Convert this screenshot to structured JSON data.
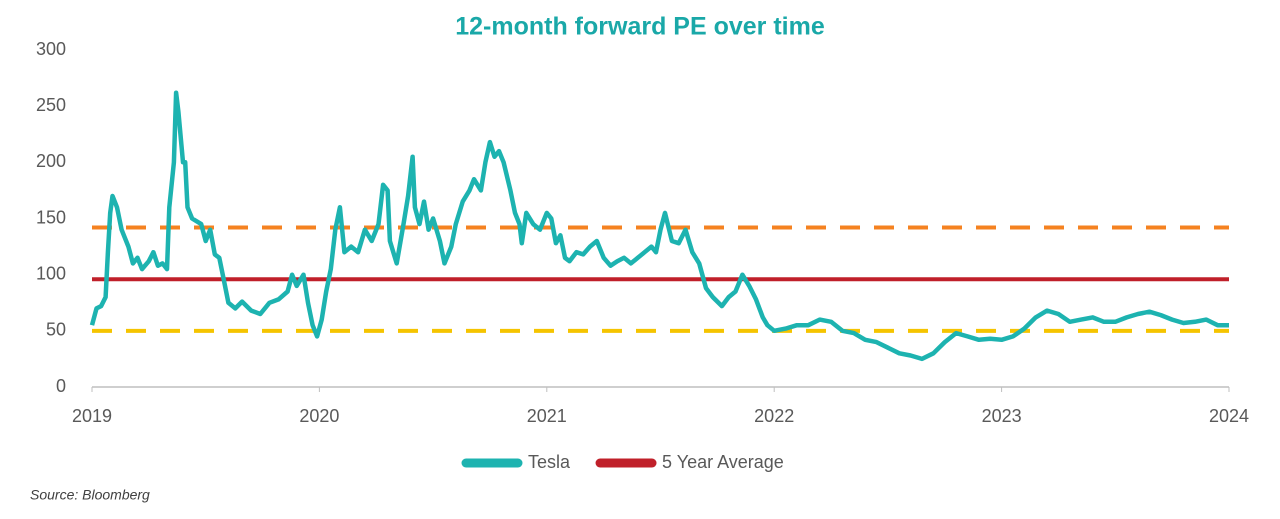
{
  "chart_data": {
    "type": "line",
    "title": "12-month forward PE over time",
    "source": "Source: Bloomberg",
    "xlim": [
      2019,
      2024
    ],
    "xticks": [
      2019,
      2020,
      2021,
      2022,
      2023,
      2024
    ],
    "ylim": [
      0,
      300
    ],
    "yticks": [
      0,
      50,
      100,
      150,
      200,
      250,
      300
    ],
    "grid": false,
    "legend": "bottom",
    "reference_lines": [
      {
        "value": 142,
        "color": "#f58220"
      },
      {
        "value": 50,
        "color": "#f5c400"
      }
    ],
    "series": [
      {
        "name": "Tesla",
        "color": "#1db3b0",
        "x": [
          2019.0,
          2019.02,
          2019.04,
          2019.06,
          2019.07,
          2019.08,
          2019.09,
          2019.11,
          2019.13,
          2019.16,
          2019.18,
          2019.2,
          2019.22,
          2019.25,
          2019.27,
          2019.29,
          2019.31,
          2019.33,
          2019.34,
          2019.36,
          2019.37,
          2019.38,
          2019.4,
          2019.41,
          2019.42,
          2019.44,
          2019.48,
          2019.5,
          2019.52,
          2019.54,
          2019.56,
          2019.58,
          2019.6,
          2019.63,
          2019.66,
          2019.7,
          2019.74,
          2019.78,
          2019.82,
          2019.86,
          2019.88,
          2019.9,
          2019.93,
          2019.95,
          2019.97,
          2019.99,
          2020.01,
          2020.03,
          2020.05,
          2020.07,
          2020.09,
          2020.11,
          2020.14,
          2020.17,
          2020.2,
          2020.23,
          2020.26,
          2020.28,
          2020.3,
          2020.31,
          2020.34,
          2020.37,
          2020.39,
          2020.41,
          2020.42,
          2020.44,
          2020.46,
          2020.48,
          2020.5,
          2020.53,
          2020.55,
          2020.58,
          2020.6,
          2020.63,
          2020.66,
          2020.68,
          2020.71,
          2020.73,
          2020.75,
          2020.77,
          2020.79,
          2020.81,
          2020.84,
          2020.86,
          2020.88,
          2020.89,
          2020.91,
          2020.94,
          2020.97,
          2021.0,
          2021.02,
          2021.04,
          2021.06,
          2021.08,
          2021.1,
          2021.13,
          2021.16,
          2021.19,
          2021.22,
          2021.25,
          2021.28,
          2021.31,
          2021.34,
          2021.37,
          2021.4,
          2021.43,
          2021.46,
          2021.48,
          2021.5,
          2021.52,
          2021.55,
          2021.58,
          2021.61,
          2021.64,
          2021.67,
          2021.7,
          2021.73,
          2021.77,
          2021.8,
          2021.83,
          2021.86,
          2021.89,
          2021.92,
          2021.95,
          2021.97,
          2022.0,
          2022.05,
          2022.1,
          2022.15,
          2022.2,
          2022.25,
          2022.3,
          2022.35,
          2022.4,
          2022.45,
          2022.5,
          2022.55,
          2022.6,
          2022.65,
          2022.7,
          2022.75,
          2022.8,
          2022.85,
          2022.9,
          2022.95,
          2023.0,
          2023.05,
          2023.1,
          2023.15,
          2023.2,
          2023.25,
          2023.3,
          2023.35,
          2023.4,
          2023.45,
          2023.5,
          2023.55,
          2023.6,
          2023.65,
          2023.7,
          2023.75,
          2023.8,
          2023.85,
          2023.9,
          2023.95,
          2024.0
        ],
        "values": [
          55,
          70,
          72,
          80,
          120,
          155,
          170,
          160,
          140,
          125,
          110,
          115,
          105,
          112,
          120,
          108,
          110,
          105,
          160,
          200,
          262,
          245,
          200,
          200,
          160,
          150,
          145,
          130,
          140,
          118,
          115,
          95,
          75,
          70,
          76,
          68,
          65,
          75,
          78,
          85,
          100,
          90,
          100,
          75,
          55,
          45,
          60,
          85,
          105,
          140,
          160,
          120,
          125,
          120,
          140,
          130,
          145,
          180,
          175,
          130,
          110,
          145,
          170,
          205,
          160,
          145,
          165,
          140,
          150,
          130,
          110,
          125,
          145,
          165,
          175,
          185,
          175,
          200,
          218,
          205,
          210,
          200,
          175,
          155,
          145,
          128,
          155,
          145,
          140,
          155,
          150,
          128,
          135,
          115,
          112,
          120,
          118,
          125,
          130,
          115,
          108,
          112,
          115,
          110,
          115,
          120,
          125,
          120,
          140,
          155,
          130,
          128,
          140,
          120,
          110,
          88,
          80,
          72,
          80,
          85,
          100,
          90,
          78,
          62,
          55,
          50,
          52,
          55,
          55,
          60,
          58,
          50,
          48,
          42,
          40,
          35,
          30,
          28,
          25,
          30,
          40,
          48,
          45,
          42,
          43,
          42,
          45,
          52,
          62,
          68,
          65,
          58,
          60,
          62,
          58,
          58,
          62,
          65,
          67,
          64,
          60,
          57,
          58,
          60,
          55,
          55
        ]
      },
      {
        "name": "5 Year Average",
        "color": "#c0202a",
        "x": [
          2019,
          2024
        ],
        "values": [
          96,
          96
        ]
      }
    ]
  }
}
